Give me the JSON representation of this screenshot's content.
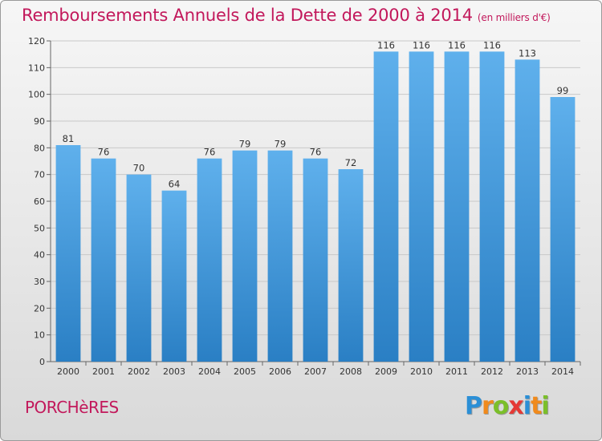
{
  "title": "Remboursements Annuels de la Dette de 2000 à 2014",
  "unit": "(en milliers d'€)",
  "commune": "PORCHèRES",
  "logo": {
    "letters": [
      "P",
      "r",
      "o",
      "x",
      "i",
      "t",
      "i"
    ],
    "colors": [
      "#2b8fd6",
      "#f08a1c",
      "#7bbf2a",
      "#e53935",
      "#2b8fd6",
      "#f08a1c",
      "#7bbf2a"
    ]
  },
  "colors": {
    "bar": "#3d95d8",
    "bar_light": "#63b3ee",
    "accent": "#c2185b"
  },
  "chart_data": {
    "type": "bar",
    "categories": [
      "2000",
      "2001",
      "2002",
      "2003",
      "2004",
      "2005",
      "2006",
      "2007",
      "2008",
      "2009",
      "2010",
      "2011",
      "2012",
      "2013",
      "2014"
    ],
    "values": [
      81,
      76,
      70,
      64,
      76,
      79,
      79,
      76,
      72,
      116,
      116,
      116,
      116,
      113,
      99
    ],
    "ylim": [
      0,
      120
    ],
    "yticks": [
      0,
      10,
      20,
      30,
      40,
      50,
      60,
      70,
      80,
      90,
      100,
      110,
      120
    ],
    "grid": true
  }
}
